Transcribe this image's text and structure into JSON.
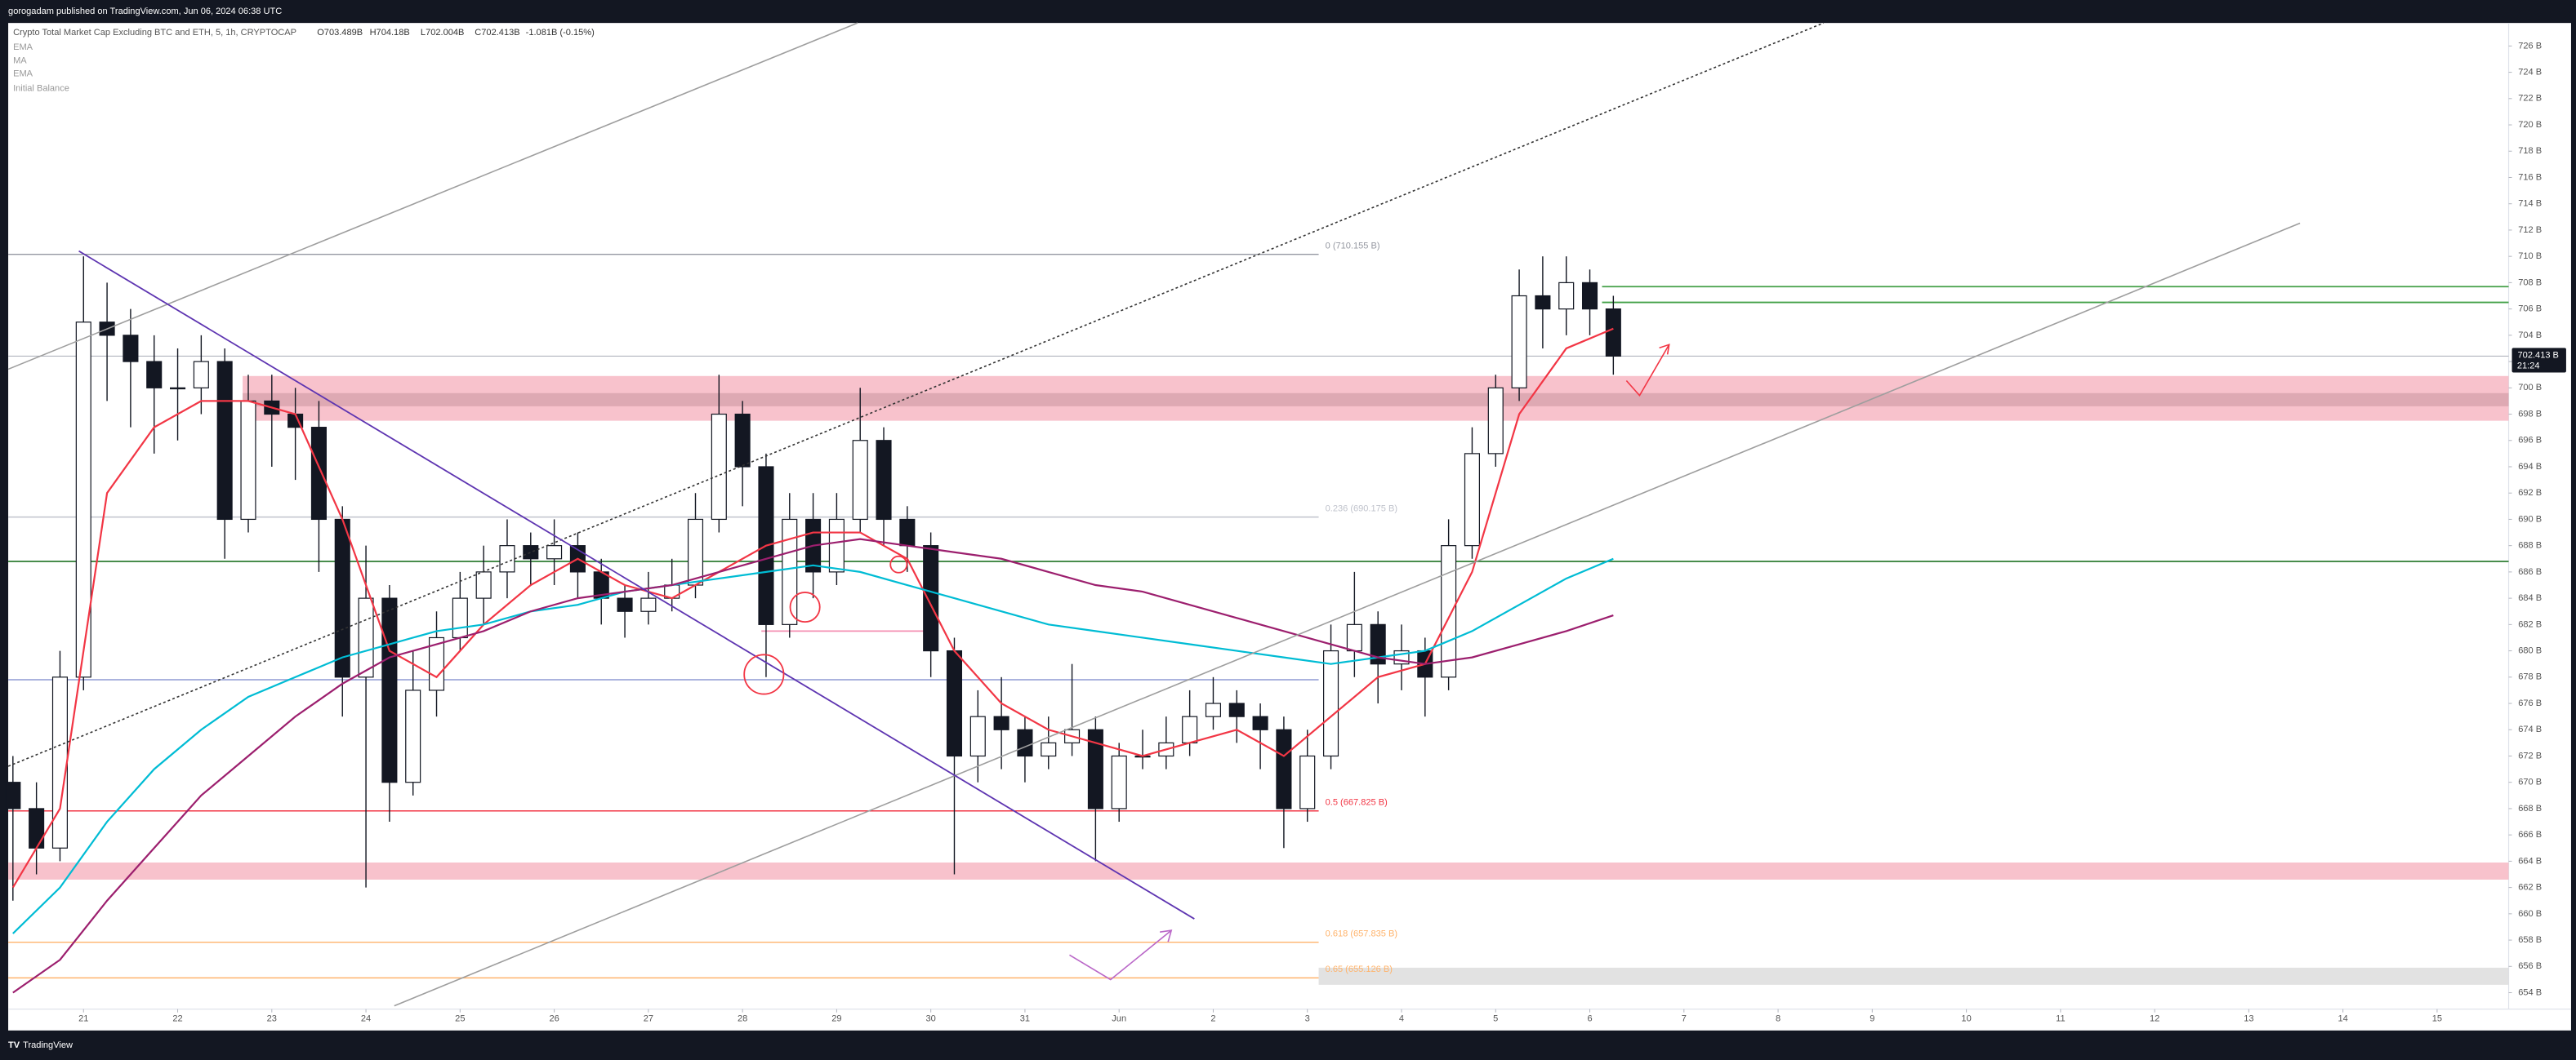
{
  "header": "gorogadam published on TradingView.com, Jun 06, 2024 06:38 UTC",
  "brand": "TradingView",
  "chart_data": {
    "type": "candlestick",
    "title": "Crypto Total Market Cap Excluding BTC and ETH, 5, 1h, CRYPTOCAP",
    "ohlc_summary": [
      "O703.489B",
      "H704.18B",
      "L702.004B",
      "C702.413B",
      "-1.081B (-0.15%)"
    ],
    "extra_indicator": "Initial Balance",
    "up_color": "#ffffff",
    "down_color": "#131722",
    "x": [
      20.25,
      20.5,
      20.75,
      21,
      21.25,
      21.5,
      21.75,
      22,
      22.25,
      22.5,
      22.75,
      23,
      23.25,
      23.5,
      23.75,
      24,
      24.25,
      24.5,
      24.75,
      25,
      25.25,
      25.5,
      25.75,
      26,
      26.25,
      26.5,
      26.75,
      27,
      27.25,
      27.5,
      27.75,
      28,
      28.25,
      28.5,
      28.75,
      29,
      29.25,
      29.5,
      29.75,
      30,
      30.25,
      30.5,
      30.75,
      31,
      31.25,
      31.5,
      31.75,
      32,
      32.25,
      32.5,
      32.75,
      33,
      33.25,
      33.5,
      33.75,
      34,
      34.25,
      34.5,
      34.75,
      35,
      35.25,
      35.5,
      35.75,
      36,
      36.25,
      36.5,
      36.75,
      37,
      37.25
    ],
    "ohlc": [
      [
        670,
        672,
        661,
        668
      ],
      [
        668,
        670,
        663,
        665
      ],
      [
        665,
        680,
        664,
        678
      ],
      [
        678,
        710,
        677,
        705
      ],
      [
        705,
        708,
        699,
        704
      ],
      [
        704,
        706,
        697,
        702
      ],
      [
        702,
        704,
        695,
        700
      ],
      [
        700,
        703,
        696,
        700
      ],
      [
        700,
        704,
        698,
        702
      ],
      [
        702,
        703,
        687,
        690
      ],
      [
        690,
        701,
        689,
        699
      ],
      [
        699,
        701,
        694,
        698
      ],
      [
        698,
        700,
        693,
        697
      ],
      [
        697,
        699,
        686,
        690
      ],
      [
        690,
        691,
        675,
        678
      ],
      [
        678,
        688,
        662,
        684
      ],
      [
        684,
        685,
        667,
        670
      ],
      [
        670,
        680,
        669,
        677
      ],
      [
        677,
        683,
        675,
        681
      ],
      [
        681,
        686,
        680,
        684
      ],
      [
        684,
        688,
        682,
        686
      ],
      [
        686,
        690,
        684,
        688
      ],
      [
        688,
        689,
        685,
        687
      ],
      [
        687,
        690,
        685,
        688
      ],
      [
        688,
        689,
        684,
        686
      ],
      [
        686,
        687,
        682,
        684
      ],
      [
        684,
        685,
        681,
        683
      ],
      [
        683,
        686,
        682,
        684
      ],
      [
        684,
        687,
        683,
        685
      ],
      [
        685,
        692,
        684,
        690
      ],
      [
        690,
        701,
        689,
        698
      ],
      [
        698,
        699,
        691,
        694
      ],
      [
        694,
        695,
        678,
        682
      ],
      [
        682,
        692,
        681,
        690
      ],
      [
        690,
        692,
        684,
        686
      ],
      [
        686,
        692,
        685,
        690
      ],
      [
        690,
        700,
        689,
        696
      ],
      [
        696,
        697,
        688,
        690
      ],
      [
        690,
        691,
        686,
        688
      ],
      [
        688,
        689,
        678,
        680
      ],
      [
        680,
        681,
        663,
        672
      ],
      [
        672,
        677,
        670,
        675
      ],
      [
        675,
        678,
        671,
        674
      ],
      [
        674,
        675,
        670,
        672
      ],
      [
        672,
        675,
        671,
        673
      ],
      [
        673,
        679,
        672,
        674
      ],
      [
        674,
        675,
        664,
        668
      ],
      [
        668,
        673,
        667,
        672
      ],
      [
        672,
        674,
        671,
        672
      ],
      [
        672,
        675,
        671,
        673
      ],
      [
        673,
        677,
        672,
        675
      ],
      [
        675,
        678,
        674,
        676
      ],
      [
        676,
        677,
        673,
        675
      ],
      [
        675,
        676,
        671,
        674
      ],
      [
        674,
        675,
        665,
        668
      ],
      [
        668,
        674,
        667,
        672
      ],
      [
        672,
        682,
        671,
        680
      ],
      [
        680,
        686,
        678,
        682
      ],
      [
        682,
        683,
        676,
        679
      ],
      [
        679,
        682,
        677,
        680
      ],
      [
        680,
        681,
        675,
        678
      ],
      [
        678,
        690,
        677,
        688
      ],
      [
        688,
        697,
        687,
        695
      ],
      [
        695,
        701,
        694,
        700
      ],
      [
        700,
        709,
        699,
        707
      ],
      [
        707,
        710,
        703,
        706
      ],
      [
        706,
        710,
        704,
        708
      ],
      [
        708,
        709,
        704,
        706
      ],
      [
        706,
        707,
        701,
        702.413
      ]
    ],
    "series": [
      {
        "name": "EMA",
        "color": "#f23645",
        "x": [
          20.25,
          20.75,
          21.25,
          21.75,
          22.25,
          22.75,
          23.25,
          23.75,
          24.25,
          24.75,
          25.25,
          25.75,
          26.25,
          26.75,
          27.25,
          27.75,
          28.25,
          28.75,
          29.25,
          29.75,
          30.25,
          30.75,
          31.25,
          31.75,
          32.25,
          32.75,
          33.25,
          33.75,
          34.25,
          34.75,
          35.25,
          35.75,
          36.25,
          36.75,
          37.25
        ],
        "values": [
          662,
          668,
          692,
          697,
          699,
          699,
          698,
          690,
          680,
          678,
          682,
          685,
          687,
          685,
          684,
          686,
          688,
          689,
          689,
          687,
          680,
          676,
          674,
          673,
          672,
          673,
          674,
          672,
          675,
          678,
          679,
          686,
          698,
          703,
          704.5
        ]
      },
      {
        "name": "MA",
        "color": "#00bcd4",
        "x": [
          20.25,
          20.75,
          21.25,
          21.75,
          22.25,
          22.75,
          23.25,
          23.75,
          24.25,
          24.75,
          25.25,
          25.75,
          26.25,
          26.75,
          27.25,
          27.75,
          28.25,
          28.75,
          29.25,
          29.75,
          30.25,
          30.75,
          31.25,
          31.75,
          32.25,
          32.75,
          33.25,
          33.75,
          34.25,
          34.75,
          35.25,
          35.75,
          36.25,
          36.75,
          37.25
        ],
        "values": [
          658.5,
          662,
          667,
          671,
          674,
          676.5,
          678,
          679.5,
          680.5,
          681.5,
          682,
          683,
          683.5,
          684.5,
          685,
          685.5,
          686,
          686.5,
          686,
          685,
          684,
          683,
          682,
          681.5,
          681,
          680.5,
          680,
          679.5,
          679,
          679.5,
          680,
          681.5,
          683.5,
          685.5,
          687
        ]
      },
      {
        "name": "EMA",
        "color": "#9c1f6e",
        "x": [
          20.25,
          20.75,
          21.25,
          21.75,
          22.25,
          22.75,
          23.25,
          23.75,
          24.25,
          24.75,
          25.25,
          25.75,
          26.25,
          26.75,
          27.25,
          27.75,
          28.25,
          28.75,
          29.25,
          29.75,
          30.25,
          30.75,
          31.25,
          31.75,
          32.25,
          32.75,
          33.25,
          33.75,
          34.25,
          34.75,
          35.25,
          35.75,
          36.25,
          36.75,
          37.25
        ],
        "values": [
          654,
          656.5,
          661,
          665,
          669,
          672,
          675,
          677.5,
          679.5,
          680.5,
          681.5,
          683,
          684,
          684.5,
          685,
          686,
          687,
          688,
          688.5,
          688,
          687.5,
          687,
          686,
          685,
          684.5,
          683.5,
          682.5,
          681.5,
          680.5,
          679.5,
          679,
          679.5,
          680.5,
          681.5,
          682.7
        ]
      }
    ],
    "xlim": [
      20.2,
      46.76
    ],
    "xticks": [
      21,
      22,
      23,
      24,
      25,
      26,
      27,
      28,
      29,
      30,
      31,
      {
        "value": 32,
        "label": "Jun"
      },
      {
        "value": 33,
        "label": "2"
      },
      {
        "value": 34,
        "label": "3"
      },
      {
        "value": 35,
        "label": "4"
      },
      {
        "value": 36,
        "label": "5"
      },
      {
        "value": 37,
        "label": "6"
      },
      {
        "value": 38,
        "label": "7"
      },
      {
        "value": 39,
        "label": "8"
      },
      {
        "value": 40,
        "label": "9"
      },
      {
        "value": 41,
        "label": "10"
      },
      {
        "value": 42,
        "label": "11"
      },
      {
        "value": 43,
        "label": "12"
      },
      {
        "value": 44,
        "label": "13"
      },
      {
        "value": 45,
        "label": "14"
      },
      {
        "value": 46,
        "label": "15"
      }
    ],
    "ylim": [
      652.75,
      727.75
    ],
    "yticks": [
      {
        "value": 654,
        "label": "654 B"
      },
      {
        "value": 656,
        "label": "656 B"
      },
      {
        "value": 658,
        "label": "658 B"
      },
      {
        "value": 660,
        "label": "660 B"
      },
      {
        "value": 662,
        "label": "662 B"
      },
      {
        "value": 664,
        "label": "664 B"
      },
      {
        "value": 666,
        "label": "666 B"
      },
      {
        "value": 668,
        "label": "668 B"
      },
      {
        "value": 670,
        "label": "670 B"
      },
      {
        "value": 672,
        "label": "672 B"
      },
      {
        "value": 674,
        "label": "674 B"
      },
      {
        "value": 676,
        "label": "676 B"
      },
      {
        "value": 678,
        "label": "678 B"
      },
      {
        "value": 680,
        "label": "680 B"
      },
      {
        "value": 682,
        "label": "682 B"
      },
      {
        "value": 684,
        "label": "684 B"
      },
      {
        "value": 686,
        "label": "686 B"
      },
      {
        "value": 688,
        "label": "688 B"
      },
      {
        "value": 690,
        "label": "690 B"
      },
      {
        "value": 692,
        "label": "692 B"
      },
      {
        "value": 694,
        "label": "694 B"
      },
      {
        "value": 696,
        "label": "696 B"
      },
      {
        "value": 698,
        "label": "698 B"
      },
      {
        "value": 700,
        "label": "700 B"
      },
      {
        "value": 702,
        "label": "702 B"
      },
      {
        "value": 704,
        "label": "704 B"
      },
      {
        "value": 706,
        "label": "706 B"
      },
      {
        "value": 708,
        "label": "708 B"
      },
      {
        "value": 710,
        "label": "710 B"
      },
      {
        "value": 712,
        "label": "712 B"
      },
      {
        "value": 714,
        "label": "714 B"
      },
      {
        "value": 716,
        "label": "716 B"
      },
      {
        "value": 718,
        "label": "718 B"
      },
      {
        "value": 720,
        "label": "720 B"
      },
      {
        "value": 722,
        "label": "722 B"
      },
      {
        "value": 724,
        "label": "724 B"
      },
      {
        "value": 726,
        "label": "726 B"
      }
    ],
    "grid": false,
    "last_price": {
      "value": 702.413,
      "label": "702.413 B"
    },
    "countdown": "21:24",
    "fib_end": 34.12,
    "fib_levels": [
      {
        "value": 710.155,
        "label": "0 (710.155 B)",
        "color": "#9598a1"
      },
      {
        "value": 690.175,
        "label": "0.236 (690.175 B)",
        "color": "#c0c3cc"
      },
      {
        "value": 667.825,
        "label": "0.5 (667.825 B)",
        "color": "#f23645"
      },
      {
        "value": 657.835,
        "label": "0.618 (657.835 B)",
        "color": "#ffb36b"
      },
      {
        "value": 655.126,
        "label": "0.65 (655.126 B)",
        "color": "#ffb36b"
      }
    ],
    "zones": [
      {
        "from": 697.5,
        "to": 700.9,
        "x0": 22.69,
        "color": "#f7b7c3"
      },
      {
        "from": 698.6,
        "to": 699.6,
        "x0": 22.69,
        "color": "#d9a4ae"
      },
      {
        "from": 662.6,
        "to": 663.9,
        "color": "#f7b7c3"
      },
      {
        "from": 654.6,
        "to": 655.9,
        "x0": 34.12,
        "color": "#dddddd"
      }
    ],
    "levels": [
      {
        "value": 686.8,
        "color": "#2e7d32"
      },
      {
        "value": 707.7,
        "x0": 37.13,
        "color": "#43a047"
      },
      {
        "value": 706.5,
        "x0": 37.13,
        "color": "#43a047"
      },
      {
        "value": 677.8,
        "x1": 34.12,
        "color": "#9fa8da"
      },
      {
        "value": 681.5,
        "x0": 28.2,
        "x1": 30,
        "color": "#f48fb1"
      }
    ]
  }
}
